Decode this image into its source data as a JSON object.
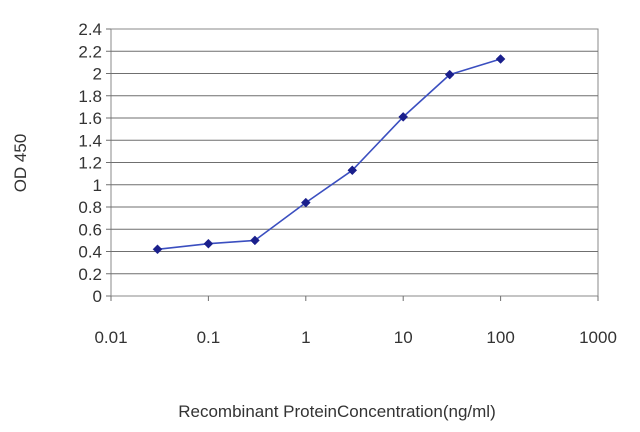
{
  "chart_data": {
    "type": "line",
    "title": "",
    "xlabel": "Recombinant ProteinConcentration(ng/ml)",
    "ylabel": "OD 450",
    "x_scale": "log",
    "xlim": [
      0.01,
      1000
    ],
    "ylim": [
      0,
      2.4
    ],
    "x_ticks": [
      "0.01",
      "0.1",
      "1",
      "10",
      "100",
      "1000"
    ],
    "x_tick_values": [
      0.01,
      0.1,
      1,
      10,
      100,
      1000
    ],
    "y_ticks": [
      "0",
      "0.2",
      "0.4",
      "0.6",
      "0.8",
      "1",
      "1.2",
      "1.4",
      "1.6",
      "1.8",
      "2",
      "2.2",
      "2.4"
    ],
    "y_tick_values": [
      0,
      0.2,
      0.4,
      0.6,
      0.8,
      1,
      1.2,
      1.4,
      1.6,
      1.8,
      2,
      2.2,
      2.4
    ],
    "grid": "horizontal",
    "legend": "none",
    "series": [
      {
        "x": [
          0.03,
          0.1,
          0.3,
          1,
          3,
          10,
          30,
          100
        ],
        "y": [
          0.42,
          0.47,
          0.5,
          0.84,
          1.13,
          1.61,
          1.99,
          2.13
        ],
        "color": "#3b4fc0",
        "marker_color": "#1a1f8c"
      }
    ]
  }
}
